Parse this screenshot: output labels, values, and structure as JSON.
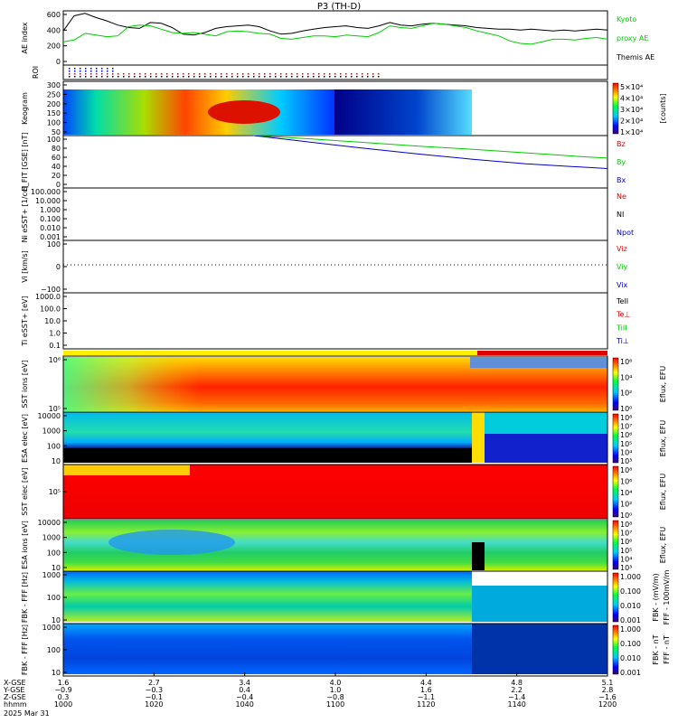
{
  "title": "P3 (TH-D)",
  "colors": {
    "black": "#000000",
    "green": "#00cc00",
    "red": "#e00000",
    "blue": "#0000cc"
  },
  "chart_data": {
    "type": "line",
    "panels": [
      {
        "id": "ae",
        "ylabel": "AE index",
        "yticks": [
          "600",
          "400",
          "200",
          "0"
        ],
        "ylim": [
          -50,
          600
        ],
        "legend": [
          {
            "text": "Kyoto",
            "color": "#00cc00"
          },
          {
            "text": "proxy AE",
            "color": "#00cc00"
          },
          {
            "text": "Themis AE",
            "color": "#000000"
          }
        ],
        "series": [
          {
            "name": "Themis AE",
            "color": "#000000",
            "x": [
              1000,
              1004,
              1008,
              1012,
              1016,
              1020,
              1024,
              1028,
              1032,
              1036,
              1040,
              1044,
              1048,
              1052,
              1056,
              1060,
              1064,
              1068,
              1072,
              1076,
              1080,
              1084,
              1088,
              1092,
              1096,
              1100,
              1104,
              1108,
              1112,
              1116,
              1120,
              1124,
              1128,
              1132,
              1136,
              1140,
              1144,
              1148,
              1152,
              1156,
              1160,
              1164,
              1168,
              1172,
              1176,
              1180,
              1184,
              1188,
              1192,
              1196,
              1200
            ],
            "y": [
              360,
              540,
              570,
              520,
              480,
              430,
              400,
              390,
              460,
              450,
              400,
              320,
              310,
              340,
              390,
              410,
              420,
              430,
              410,
              360,
              320,
              330,
              360,
              380,
              400,
              410,
              420,
              400,
              390,
              420,
              460,
              430,
              420,
              440,
              450,
              440,
              430,
              420,
              400,
              390,
              380,
              380,
              370,
              380,
              370,
              360,
              370,
              360,
              370,
              380,
              370
            ]
          },
          {
            "name": "Kyoto proxy AE",
            "color": "#00cc00",
            "x": [
              1000,
              1004,
              1008,
              1012,
              1016,
              1020,
              1024,
              1028,
              1032,
              1036,
              1040,
              1044,
              1048,
              1052,
              1056,
              1060,
              1064,
              1068,
              1072,
              1076,
              1080,
              1084,
              1088,
              1092,
              1096,
              1100,
              1104,
              1108,
              1112,
              1116,
              1120,
              1124,
              1128,
              1132,
              1136,
              1140,
              1144,
              1148,
              1152,
              1156,
              1160,
              1164,
              1168,
              1172,
              1176,
              1180,
              1184,
              1188,
              1192,
              1196,
              1200
            ],
            "y": [
              230,
              250,
              330,
              310,
              290,
              300,
              410,
              430,
              420,
              380,
              340,
              330,
              340,
              320,
              300,
              350,
              360,
              350,
              330,
              320,
              270,
              260,
              280,
              300,
              300,
              290,
              310,
              300,
              290,
              340,
              420,
              400,
              390,
              420,
              450,
              440,
              420,
              400,
              360,
              330,
              300,
              240,
              210,
              200,
              230,
              260,
              260,
              250,
              270,
              280,
              260
            ]
          }
        ]
      },
      {
        "id": "roi",
        "ylabel": "ROI"
      },
      {
        "id": "keogram",
        "ylabel": "Keogram",
        "yticks": [
          "300",
          "250",
          "200",
          "150",
          "100",
          "50"
        ],
        "cbar_ticks": [
          "5×10⁴",
          "4×10⁴",
          "3×10⁴",
          "2×10⁴",
          "1×10⁴"
        ],
        "cbar_label": "[counts]"
      },
      {
        "id": "bfit",
        "ylabel": "B_FIT [GSE] [nT]",
        "yticks": [
          "100",
          "80",
          "60",
          "40",
          "20",
          "0"
        ],
        "ylim": [
          0,
          100
        ],
        "legend": [
          {
            "text": "Bz",
            "color": "#e00000"
          },
          {
            "text": "By",
            "color": "#00cc00"
          },
          {
            "text": "Bx",
            "color": "#0000cc"
          }
        ],
        "series": [
          {
            "name": "By",
            "color": "#00cc00",
            "x": [
              1070,
              1090,
              1110,
              1130,
              1150,
              1170,
              1190,
              1200
            ],
            "y": [
              100,
              94,
              87,
              80,
              74,
              67,
              60,
              57
            ]
          },
          {
            "name": "Bx",
            "color": "#0000cc",
            "x": [
              1070,
              1090,
              1110,
              1130,
              1150,
              1170,
              1190,
              1200
            ],
            "y": [
              100,
              88,
              76,
              65,
              55,
              46,
              40,
              37
            ]
          }
        ]
      },
      {
        "id": "ni",
        "ylabel": "Ni eSST+ [1/cc]",
        "yticks": [
          "100.000",
          "10.000",
          "1.000",
          "0.100",
          "0.010",
          "0.001"
        ],
        "log": true,
        "legend": [
          {
            "text": "Ne",
            "color": "#e00000"
          },
          {
            "text": "NI",
            "color": "#000000"
          },
          {
            "text": "Npot",
            "color": "#0000cc"
          }
        ]
      },
      {
        "id": "vi",
        "ylabel": "Vi [km/s]",
        "yticks": [
          "100",
          "0",
          "−100"
        ],
        "ylim": [
          -180,
          180
        ],
        "legend": [
          {
            "text": "Viz",
            "color": "#e00000"
          },
          {
            "text": "Viy",
            "color": "#00cc00"
          },
          {
            "text": "Vix",
            "color": "#0000cc"
          }
        ]
      },
      {
        "id": "ti",
        "ylabel": "Ti eSST+ [eV]",
        "yticks": [
          "1000.0",
          "100.0",
          "10.0",
          "1.0",
          "0.1"
        ],
        "log": true,
        "legend": [
          {
            "text": "TeII",
            "color": "#000000"
          },
          {
            "text": "Te⊥",
            "color": "#e00000"
          },
          {
            "text": "TiII",
            "color": "#00cc00"
          },
          {
            "text": "Ti⊥",
            "color": "#0000cc"
          }
        ]
      },
      {
        "id": "sst_i",
        "ylabel": "SST ions [eV]",
        "yticks": [
          "10⁶",
          "10⁵"
        ],
        "cbar_ticks": [
          "10⁶",
          "10⁴",
          "10²",
          "10⁰"
        ],
        "cbar_label": "Eflux, EFU"
      },
      {
        "id": "esa_e",
        "ylabel": "ESA elec [eV]",
        "yticks": [
          "10000",
          "1000",
          "100",
          "10"
        ],
        "cbar_ticks": [
          "10⁸",
          "10⁷",
          "10⁶",
          "10⁵",
          "10⁴",
          "10³"
        ],
        "cbar_label": "Eflux, EFU"
      },
      {
        "id": "sst_e",
        "ylabel": "SST elec [eV]",
        "yticks": [
          "10⁵"
        ],
        "cbar_ticks": [
          "10⁸",
          "10⁶",
          "10⁴",
          "10²",
          "10⁰"
        ],
        "cbar_label": "Eflux, EFU"
      },
      {
        "id": "esa_i",
        "ylabel": "ESA ions [eV]",
        "yticks": [
          "10000",
          "1000",
          "100",
          "10"
        ],
        "cbar_ticks": [
          "10⁸",
          "10⁷",
          "10⁶",
          "10⁵",
          "10⁴",
          "10³"
        ],
        "cbar_label": "Eflux, EFU"
      },
      {
        "id": "fbk_fff",
        "ylabel": "FBK - FFF [Hz]",
        "yticks": [
          "1000",
          "100",
          "10"
        ],
        "cbar_ticks": [
          "1.000",
          "0.100",
          "0.010",
          "0.001"
        ],
        "cbar_label": "FBK - (mV/m)",
        "cbar_label2": "FFF - 100mV/m"
      },
      {
        "id": "fbk_fff2",
        "ylabel": "FBK - FFF [Hz]",
        "yticks": [
          "1000",
          "100",
          "10"
        ],
        "cbar_ticks": [
          "1.000",
          "0.100",
          "0.010",
          "0.001"
        ],
        "cbar_label": "FBK - nT",
        "cbar_label2": "FFF - nT"
      }
    ],
    "xaxis": {
      "row_labels": [
        "X-GSE",
        "Y-GSE",
        "Z-GSE",
        "hhmm",
        "2025 Mar 31"
      ],
      "ticks": [
        {
          "x": "1.6",
          "y": "−0.9",
          "z": "0.3",
          "hhmm": "1000"
        },
        {
          "x": "2.7",
          "y": "−0.3",
          "z": "−0.1",
          "hhmm": "1020"
        },
        {
          "x": "3.4",
          "y": "0.4",
          "z": "−0.4",
          "hhmm": "1040"
        },
        {
          "x": "4.0",
          "y": "1.0",
          "z": "−0.8",
          "hhmm": "1100"
        },
        {
          "x": "4.4",
          "y": "1.6",
          "z": "−1.1",
          "hhmm": "1120"
        },
        {
          "x": "4.8",
          "y": "2.2",
          "z": "−1.4",
          "hhmm": "1140"
        },
        {
          "x": "5.1",
          "y": "2.8",
          "z": "−1.6",
          "hhmm": "1200"
        }
      ]
    }
  }
}
